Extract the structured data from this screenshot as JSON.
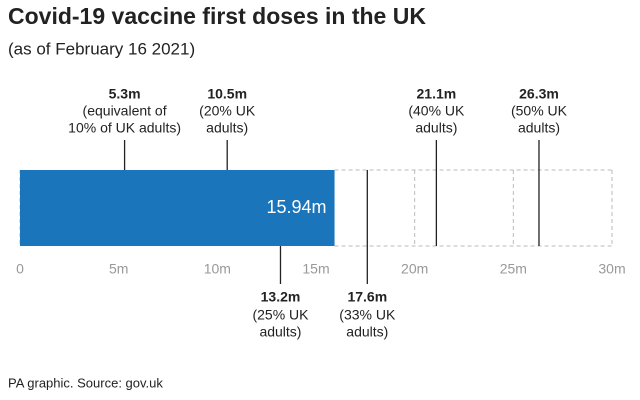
{
  "chart_data": {
    "type": "bar",
    "title": "Covid-19 vaccine first doses in the UK",
    "subtitle": "(as of February 16 2021)",
    "source": "PA graphic. Source: gov.uk",
    "orientation": "horizontal",
    "values": [
      15.94
    ],
    "value_labels": [
      "15.94m"
    ],
    "color": "#1b75bb",
    "xlim": [
      0,
      30
    ],
    "xticks": [
      0,
      {
        "value": 5,
        "label": "5m"
      },
      {
        "value": 10,
        "label": "10m"
      },
      {
        "value": 15,
        "label": "15m"
      },
      {
        "value": 20,
        "label": "20m"
      },
      {
        "value": 25,
        "label": "25m"
      },
      {
        "value": 30,
        "label": "30m"
      }
    ],
    "grid": true,
    "annotations": [
      {
        "value": 5.3,
        "label": "5.3m",
        "note": [
          "(equivalent of",
          "10% of UK adults)"
        ],
        "side": "top"
      },
      {
        "value": 10.5,
        "label": "10.5m",
        "note": [
          "(20% UK",
          "adults)"
        ],
        "side": "top"
      },
      {
        "value": 21.1,
        "label": "21.1m",
        "note": [
          "(40% UK",
          "adults)"
        ],
        "side": "top"
      },
      {
        "value": 26.3,
        "label": "26.3m",
        "note": [
          "(50% UK",
          "adults)"
        ],
        "side": "top"
      },
      {
        "value": 13.2,
        "label": "13.2m",
        "note": [
          "(25% UK",
          "adults)"
        ],
        "side": "bottom"
      },
      {
        "value": 17.6,
        "label": "17.6m",
        "note": [
          "(33% UK",
          "adults)"
        ],
        "side": "bottom"
      }
    ]
  }
}
